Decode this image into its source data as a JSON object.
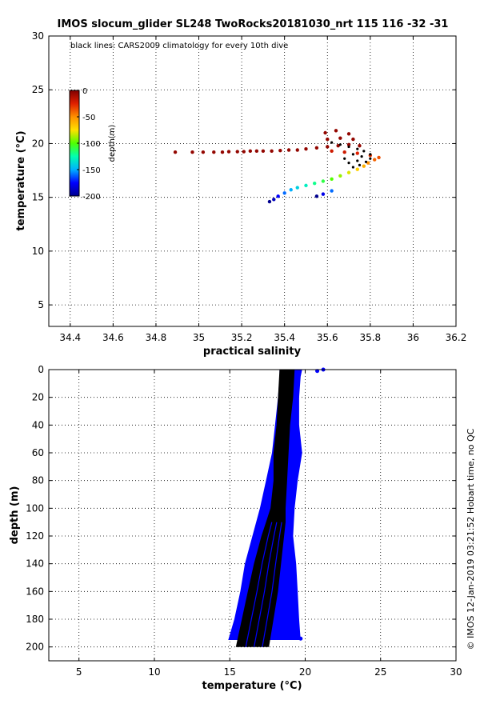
{
  "figure": {
    "title": "IMOS slocum_glider SL248 TwoRocks20181030_nrt 115  116  -32  -31",
    "side_note": "© IMOS 12-Jan-2019 03:21:52 Hobart time, no QC"
  },
  "chart_data": [
    {
      "type": "scatter",
      "name": "ts_diagram",
      "annotation": "black lines: CARS2009 climatology for every 10th dive",
      "xlabel": "practical salinity",
      "ylabel": "temperature (°C)",
      "xlim": [
        34.3,
        36.2
      ],
      "ylim": [
        3,
        30
      ],
      "xticks": [
        34.4,
        34.6,
        34.8,
        35,
        35.2,
        35.4,
        35.6,
        35.8,
        36,
        36.2
      ],
      "xtick_labels": [
        "34.4",
        "34.6",
        "34.8",
        "35",
        "35.2",
        "35.4",
        "35.6",
        "35.8",
        "36",
        "36.2"
      ],
      "yticks": [
        5,
        10,
        15,
        20,
        25,
        30
      ],
      "ytick_labels": [
        "5",
        "10",
        "15",
        "20",
        "25",
        "30"
      ],
      "grid": true,
      "colorbar": {
        "label": "depth(m)",
        "range": [
          -200,
          0
        ],
        "ticks": [
          0,
          -50,
          -100,
          -150,
          -200
        ],
        "tick_labels": [
          "0",
          "-50",
          "-100",
          "-150",
          "-200"
        ],
        "colormap": [
          "#00008f",
          "#0000ff",
          "#00b0ff",
          "#00ffb0",
          "#50ff00",
          "#ffe000",
          "#ff9000",
          "#e02000",
          "#800000"
        ]
      },
      "series": [
        {
          "color_by": "depth",
          "points": [
            {
              "s": 34.89,
              "t": 19.2,
              "d": -5
            },
            {
              "s": 34.97,
              "t": 19.2,
              "d": -5
            },
            {
              "s": 35.02,
              "t": 19.2,
              "d": -5
            },
            {
              "s": 35.07,
              "t": 19.2,
              "d": -5
            },
            {
              "s": 35.11,
              "t": 19.2,
              "d": -5
            },
            {
              "s": 35.14,
              "t": 19.25,
              "d": -5
            },
            {
              "s": 35.18,
              "t": 19.25,
              "d": -5
            },
            {
              "s": 35.21,
              "t": 19.25,
              "d": -5
            },
            {
              "s": 35.24,
              "t": 19.3,
              "d": -5
            },
            {
              "s": 35.27,
              "t": 19.3,
              "d": -5
            },
            {
              "s": 35.3,
              "t": 19.3,
              "d": -5
            },
            {
              "s": 35.34,
              "t": 19.3,
              "d": -5
            },
            {
              "s": 35.38,
              "t": 19.35,
              "d": -5
            },
            {
              "s": 35.42,
              "t": 19.4,
              "d": -5
            },
            {
              "s": 35.46,
              "t": 19.4,
              "d": -5
            },
            {
              "s": 35.5,
              "t": 19.5,
              "d": -5
            },
            {
              "s": 35.55,
              "t": 19.6,
              "d": -5
            },
            {
              "s": 35.6,
              "t": 19.7,
              "d": -5
            },
            {
              "s": 35.65,
              "t": 19.8,
              "d": -5
            },
            {
              "s": 35.7,
              "t": 19.9,
              "d": -5
            },
            {
              "s": 35.75,
              "t": 19.8,
              "d": -5
            },
            {
              "s": 35.6,
              "t": 20.4,
              "d": -5
            },
            {
              "s": 35.66,
              "t": 20.5,
              "d": -5
            },
            {
              "s": 35.72,
              "t": 20.4,
              "d": -5
            },
            {
              "s": 35.59,
              "t": 21.0,
              "d": -5
            },
            {
              "s": 35.7,
              "t": 20.9,
              "d": -5
            },
            {
              "s": 35.64,
              "t": 21.2,
              "d": -5
            },
            {
              "s": 35.62,
              "t": 19.3,
              "d": -20
            },
            {
              "s": 35.68,
              "t": 19.2,
              "d": -20
            },
            {
              "s": 35.74,
              "t": 19.1,
              "d": -25
            },
            {
              "s": 35.8,
              "t": 18.9,
              "d": -30
            },
            {
              "s": 35.84,
              "t": 18.7,
              "d": -35
            },
            {
              "s": 35.82,
              "t": 18.5,
              "d": -40
            },
            {
              "s": 35.79,
              "t": 18.2,
              "d": -50
            },
            {
              "s": 35.77,
              "t": 17.9,
              "d": -60
            },
            {
              "s": 35.74,
              "t": 17.6,
              "d": -70
            },
            {
              "s": 35.7,
              "t": 17.3,
              "d": -80
            },
            {
              "s": 35.66,
              "t": 17.0,
              "d": -90
            },
            {
              "s": 35.62,
              "t": 16.7,
              "d": -100
            },
            {
              "s": 35.58,
              "t": 16.5,
              "d": -110
            },
            {
              "s": 35.54,
              "t": 16.3,
              "d": -120
            },
            {
              "s": 35.5,
              "t": 16.1,
              "d": -130
            },
            {
              "s": 35.46,
              "t": 15.9,
              "d": -140
            },
            {
              "s": 35.43,
              "t": 15.7,
              "d": -150
            },
            {
              "s": 35.4,
              "t": 15.4,
              "d": -160
            },
            {
              "s": 35.37,
              "t": 15.1,
              "d": -175
            },
            {
              "s": 35.35,
              "t": 14.8,
              "d": -190
            },
            {
              "s": 35.33,
              "t": 14.6,
              "d": -200
            },
            {
              "s": 35.62,
              "t": 15.6,
              "d": -160
            },
            {
              "s": 35.58,
              "t": 15.3,
              "d": -180
            },
            {
              "s": 35.55,
              "t": 15.1,
              "d": -200
            }
          ]
        },
        {
          "name": "CARS2009 climatology",
          "color": "#000000",
          "points": [
            {
              "s": 35.62,
              "t": 20.1
            },
            {
              "s": 35.66,
              "t": 19.9
            },
            {
              "s": 35.7,
              "t": 19.7
            },
            {
              "s": 35.74,
              "t": 19.5
            },
            {
              "s": 35.77,
              "t": 19.3
            },
            {
              "s": 35.8,
              "t": 19.0
            },
            {
              "s": 35.8,
              "t": 18.6
            },
            {
              "s": 35.78,
              "t": 18.3
            },
            {
              "s": 35.75,
              "t": 18.0
            },
            {
              "s": 35.72,
              "t": 17.8
            },
            {
              "s": 35.7,
              "t": 18.2
            },
            {
              "s": 35.68,
              "t": 18.6
            },
            {
              "s": 35.72,
              "t": 19.0
            },
            {
              "s": 35.76,
              "t": 18.8
            },
            {
              "s": 35.74,
              "t": 18.4
            }
          ]
        }
      ]
    },
    {
      "type": "scatter",
      "name": "temperature_profile",
      "xlabel": "temperature (°C)",
      "ylabel": "depth (m)",
      "xlim": [
        3,
        30
      ],
      "ylim": [
        210,
        0
      ],
      "xticks": [
        5,
        10,
        15,
        20,
        25,
        30
      ],
      "xtick_labels": [
        "5",
        "10",
        "15",
        "20",
        "25",
        "30"
      ],
      "yticks": [
        0,
        20,
        40,
        60,
        80,
        100,
        120,
        140,
        160,
        180,
        200
      ],
      "ytick_labels": [
        "0",
        "20",
        "40",
        "60",
        "80",
        "100",
        "120",
        "140",
        "160",
        "180",
        "200"
      ],
      "grid": true,
      "series": [
        {
          "name": "glider profiles",
          "color": "#0000ff",
          "band": [
            {
              "depth": 0,
              "tmin": 18.3,
              "tmax": 19.8
            },
            {
              "depth": 5,
              "tmin": 18.3,
              "tmax": 19.7
            },
            {
              "depth": 20,
              "tmin": 18.2,
              "tmax": 19.6
            },
            {
              "depth": 40,
              "tmin": 18.0,
              "tmax": 19.6
            },
            {
              "depth": 60,
              "tmin": 17.8,
              "tmax": 19.8
            },
            {
              "depth": 80,
              "tmin": 17.4,
              "tmax": 19.5
            },
            {
              "depth": 100,
              "tmin": 17.0,
              "tmax": 19.3
            },
            {
              "depth": 120,
              "tmin": 16.5,
              "tmax": 19.2
            },
            {
              "depth": 140,
              "tmin": 16.0,
              "tmax": 19.4
            },
            {
              "depth": 160,
              "tmin": 15.7,
              "tmax": 19.5
            },
            {
              "depth": 180,
              "tmin": 15.3,
              "tmax": 19.6
            },
            {
              "depth": 195,
              "tmin": 14.9,
              "tmax": 19.7
            }
          ],
          "outliers": [
            {
              "temp": 21.2,
              "depth": 0
            },
            {
              "temp": 20.8,
              "depth": 1
            },
            {
              "temp": 19.7,
              "depth": 194
            }
          ]
        },
        {
          "name": "CARS2009 climatology",
          "color": "#000000",
          "band": [
            {
              "depth": 0,
              "tmin": 18.3,
              "tmax": 19.3
            },
            {
              "depth": 20,
              "tmin": 18.2,
              "tmax": 19.2
            },
            {
              "depth": 40,
              "tmin": 18.1,
              "tmax": 19.0
            },
            {
              "depth": 60,
              "tmin": 17.9,
              "tmax": 18.9
            },
            {
              "depth": 80,
              "tmin": 17.9,
              "tmax": 18.8
            },
            {
              "depth": 100,
              "tmin": 17.7,
              "tmax": 18.7
            },
            {
              "depth": 110,
              "tmin": 17.4,
              "tmax": 18.7
            },
            {
              "depth": 120,
              "tmin": 17.1,
              "tmax": 18.6
            },
            {
              "depth": 140,
              "tmin": 16.6,
              "tmax": 18.4
            },
            {
              "depth": 160,
              "tmin": 16.2,
              "tmax": 18.2
            },
            {
              "depth": 180,
              "tmin": 15.8,
              "tmax": 17.9
            },
            {
              "depth": 200,
              "tmin": 15.4,
              "tmax": 17.6
            }
          ]
        }
      ]
    }
  ]
}
